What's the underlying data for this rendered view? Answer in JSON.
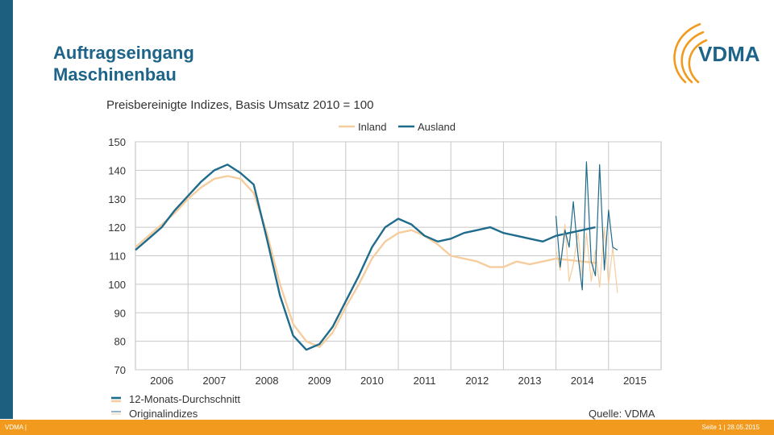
{
  "slide": {
    "title_line1": "Auftragseingang",
    "title_line2": "Maschinenbau",
    "logo_text": "VDMA",
    "footer_left": "VDMA |",
    "footer_right": "Seite 1 | 28.05.2015",
    "source": "Quelle: VDMA"
  },
  "colors": {
    "inland": "#f5cd9e",
    "ausland": "#1f6b8c",
    "accent": "#f29a1e",
    "brand": "#1d5f7f"
  },
  "chart_data": {
    "type": "line",
    "title": "Preisbereinigte Indizes, Basis Umsatz 2010 = 100",
    "ylim": [
      70,
      150
    ],
    "yticks": [
      70,
      80,
      90,
      100,
      110,
      120,
      130,
      140,
      150
    ],
    "xlim": [
      2005.5,
      2015.5
    ],
    "xtick_labels": [
      "2006",
      "2007",
      "2008",
      "2009",
      "2010",
      "2011",
      "2012",
      "2013",
      "2014",
      "2015"
    ],
    "grid": true,
    "legend_position": "top",
    "legend_series": [
      "Inland",
      "Ausland"
    ],
    "legend_styles": [
      "12-Monats-Durchschnitt",
      "Originalindizes"
    ],
    "series": [
      {
        "name": "Inland",
        "style": "12-Monats-Durchschnitt",
        "x": [
          2005.5,
          2005.75,
          2006.0,
          2006.25,
          2006.5,
          2006.75,
          2007.0,
          2007.25,
          2007.5,
          2007.75,
          2008.0,
          2008.25,
          2008.5,
          2008.75,
          2009.0,
          2009.25,
          2009.5,
          2009.75,
          2010.0,
          2010.25,
          2010.5,
          2010.75,
          2011.0,
          2011.25,
          2011.5,
          2011.75,
          2012.0,
          2012.25,
          2012.5,
          2012.75,
          2013.0,
          2013.25,
          2013.5,
          2013.75,
          2014.0,
          2014.25
        ],
        "values": [
          113,
          117,
          121,
          125,
          130,
          134,
          137,
          138,
          137,
          132,
          118,
          100,
          86,
          80,
          78,
          83,
          92,
          100,
          109,
          115,
          118,
          119,
          117,
          114,
          110,
          109,
          108,
          106,
          106,
          108,
          107,
          108,
          109,
          108.5,
          108,
          107.5
        ]
      },
      {
        "name": "Ausland",
        "style": "12-Monats-Durchschnitt",
        "x": [
          2005.5,
          2005.75,
          2006.0,
          2006.25,
          2006.5,
          2006.75,
          2007.0,
          2007.25,
          2007.5,
          2007.75,
          2008.0,
          2008.25,
          2008.5,
          2008.75,
          2009.0,
          2009.25,
          2009.5,
          2009.75,
          2010.0,
          2010.25,
          2010.5,
          2010.75,
          2011.0,
          2011.25,
          2011.5,
          2011.75,
          2012.0,
          2012.25,
          2012.5,
          2012.75,
          2013.0,
          2013.25,
          2013.5,
          2013.75,
          2014.0,
          2014.25
        ],
        "values": [
          112,
          116,
          120,
          126,
          131,
          136,
          140,
          142,
          139,
          135,
          116,
          96,
          82,
          77,
          79,
          85,
          94,
          103,
          113,
          120,
          123,
          121,
          117,
          115,
          116,
          118,
          119,
          120,
          118,
          117,
          116,
          115,
          117,
          118,
          119,
          120
        ]
      },
      {
        "name": "Inland",
        "style": "Originalindizes",
        "x": [
          2013.5,
          2013.58,
          2013.67,
          2013.75,
          2013.83,
          2013.92,
          2014.0,
          2014.08,
          2014.17,
          2014.25,
          2014.33,
          2014.42,
          2014.5,
          2014.58,
          2014.67
        ],
        "values": [
          112,
          105,
          121,
          101,
          107,
          118,
          103,
          118,
          101,
          112,
          99,
          120,
          100,
          113,
          97
        ]
      },
      {
        "name": "Ausland",
        "style": "Originalindizes",
        "x": [
          2013.5,
          2013.58,
          2013.67,
          2013.75,
          2013.83,
          2013.92,
          2014.0,
          2014.08,
          2014.17,
          2014.25,
          2014.33,
          2014.42,
          2014.5,
          2014.58,
          2014.67
        ],
        "values": [
          124,
          106,
          119,
          113,
          129,
          110,
          98,
          143,
          108,
          103,
          142,
          105,
          126,
          113,
          112
        ]
      }
    ]
  }
}
